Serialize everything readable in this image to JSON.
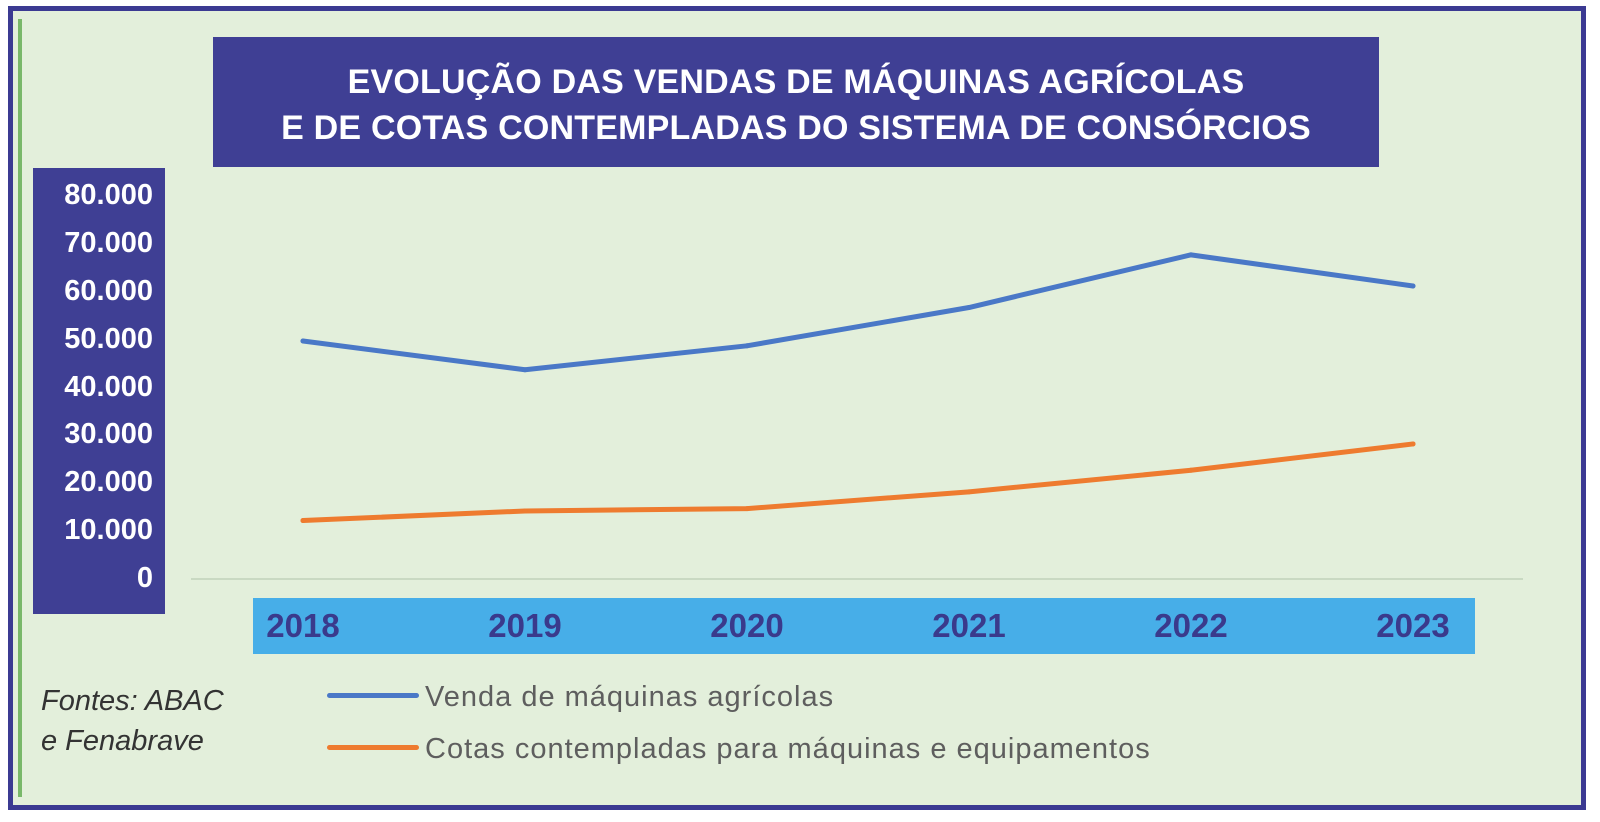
{
  "chart_data": {
    "type": "line",
    "title": "EVOLUÇÃO DAS VENDAS DE MÁQUINAS AGRÍCOLAS E DE COTAS CONTEMPLADAS DO SISTEMA DE CONSÓRCIOS",
    "title_lines": [
      "EVOLUÇÃO DAS VENDAS DE MÁQUINAS AGRÍCOLAS",
      "E DE COTAS CONTEMPLADAS DO SISTEMA DE CONSÓRCIOS"
    ],
    "categories": [
      "2018",
      "2019",
      "2020",
      "2021",
      "2022",
      "2023"
    ],
    "y_ticks": [
      "80.000",
      "70.000",
      "60.000",
      "50.000",
      "40.000",
      "30.000",
      "20.000",
      "10.000",
      "0"
    ],
    "ylim": [
      0,
      80000
    ],
    "grid": false,
    "legend_position": "bottom",
    "series": [
      {
        "name": "Venda de máquinas agrícolas",
        "color": "#4a78c7",
        "values": [
          49500,
          43500,
          48500,
          56500,
          67500,
          61000
        ]
      },
      {
        "name": "Cotas contempladas para máquinas e equipamentos",
        "color": "#ee7b2f",
        "values": [
          12000,
          14000,
          14500,
          18000,
          22500,
          28000
        ]
      }
    ]
  },
  "source_lines": [
    "Fontes: ABAC",
    "e Fenabrave"
  ],
  "colors": {
    "title_bg": "#3f3f94",
    "x_axis_bg": "#47aee8",
    "plot_bg": "#e3efdb",
    "frame_border": "#3b3a92"
  }
}
